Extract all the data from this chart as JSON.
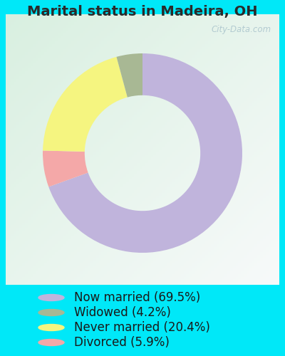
{
  "title": "Marital status in Madeira, OH",
  "slices": [
    {
      "label": "Now married (69.5%)",
      "value": 69.5,
      "color": "#c0b4dc"
    },
    {
      "label": "Divorced (5.9%)",
      "value": 5.9,
      "color": "#f4a8a8"
    },
    {
      "label": "Never married (20.4%)",
      "value": 20.4,
      "color": "#f5f580"
    },
    {
      "label": "Widowed (4.2%)",
      "value": 4.2,
      "color": "#a8b894"
    }
  ],
  "legend_order": [
    0,
    3,
    2,
    1
  ],
  "legend_labels": [
    "Now married (69.5%)",
    "Widowed (4.2%)",
    "Never married (20.4%)",
    "Divorced (5.9%)"
  ],
  "legend_colors": [
    "#c0b4dc",
    "#a8b894",
    "#f5f580",
    "#f4a8a8"
  ],
  "watermark": "City-Data.com",
  "bg_outer": "#00e8f8",
  "title_fontsize": 14,
  "legend_fontsize": 12,
  "start_angle": 90
}
